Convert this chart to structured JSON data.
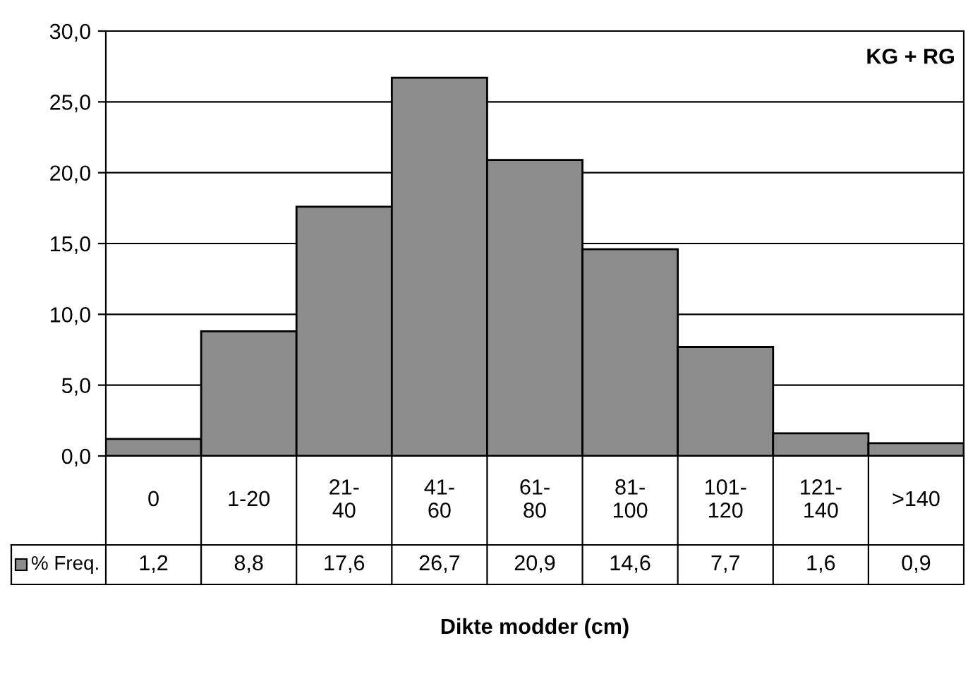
{
  "chart_data": {
    "type": "bar",
    "annotations": [
      "KG + RG"
    ],
    "xlabel": "Dikte modder (cm)",
    "categories": [
      "0",
      "1-20",
      "21-\n40",
      "41-\n60",
      "61-\n80",
      "81-\n100",
      "101-\n120",
      "121-\n140",
      ">140"
    ],
    "series": [
      {
        "name": "% Freq.",
        "color": "#8c8c8c",
        "values": [
          1.2,
          8.8,
          17.6,
          26.7,
          20.9,
          14.6,
          7.7,
          1.6,
          0.9
        ],
        "value_labels": [
          "1,2",
          "8,8",
          "17,6",
          "26,7",
          "20,9",
          "14,6",
          "7,7",
          "1,6",
          "0,9"
        ]
      }
    ],
    "data_labels": true,
    "ylim": [
      0,
      30
    ],
    "yticks": [
      {
        "value": 0,
        "label": "0,0"
      },
      {
        "value": 5,
        "label": "5,0"
      },
      {
        "value": 10,
        "label": "10,0"
      },
      {
        "value": 15,
        "label": "15,0"
      },
      {
        "value": 20,
        "label": "20,0"
      },
      {
        "value": 25,
        "label": "25,0"
      },
      {
        "value": 30,
        "label": "30,0"
      }
    ],
    "grid": "y",
    "legend": "bottom"
  }
}
